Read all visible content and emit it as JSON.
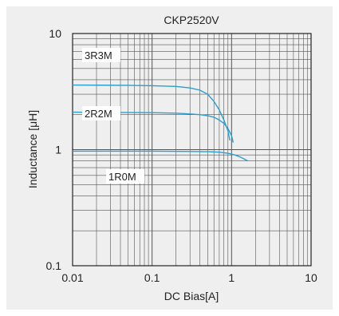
{
  "chart_data": {
    "type": "line",
    "title": "CKP2520V",
    "xlabel": "DC Bias[A]",
    "ylabel": "Inductance [μH]",
    "x_scale": "log",
    "y_scale": "log",
    "xlim": [
      0.01,
      10
    ],
    "ylim": [
      0.1,
      10
    ],
    "grid": true,
    "x_ticks": [
      {
        "value": 0.01,
        "label": "0.01"
      },
      {
        "value": 0.1,
        "label": "0.1"
      },
      {
        "value": 1,
        "label": "1"
      },
      {
        "value": 10,
        "label": "10"
      }
    ],
    "y_ticks": [
      {
        "value": 10,
        "label": "10"
      },
      {
        "value": 1,
        "label": "1"
      },
      {
        "value": 0.1,
        "label": "0.1"
      }
    ],
    "line_color": "#2a9fd0",
    "series": [
      {
        "name": "3R3M",
        "x": [
          0.01,
          0.05,
          0.1,
          0.2,
          0.3,
          0.4,
          0.5,
          0.6,
          0.7,
          0.8,
          0.9,
          0.95
        ],
        "y": [
          3.6,
          3.58,
          3.55,
          3.5,
          3.4,
          3.25,
          3.0,
          2.6,
          2.2,
          1.8,
          1.45,
          1.2
        ]
      },
      {
        "name": "2R2M",
        "x": [
          0.01,
          0.1,
          0.2,
          0.3,
          0.4,
          0.5,
          0.6,
          0.7,
          0.8,
          0.9,
          1.0,
          1.05
        ],
        "y": [
          2.1,
          2.08,
          2.06,
          2.03,
          2.0,
          1.96,
          1.9,
          1.8,
          1.68,
          1.52,
          1.32,
          1.15
        ]
      },
      {
        "name": "1R0M",
        "x": [
          0.01,
          0.1,
          0.3,
          0.5,
          0.7,
          0.9,
          1.1,
          1.3,
          1.6
        ],
        "y": [
          0.97,
          0.97,
          0.965,
          0.96,
          0.95,
          0.93,
          0.9,
          0.86,
          0.8
        ]
      }
    ]
  }
}
